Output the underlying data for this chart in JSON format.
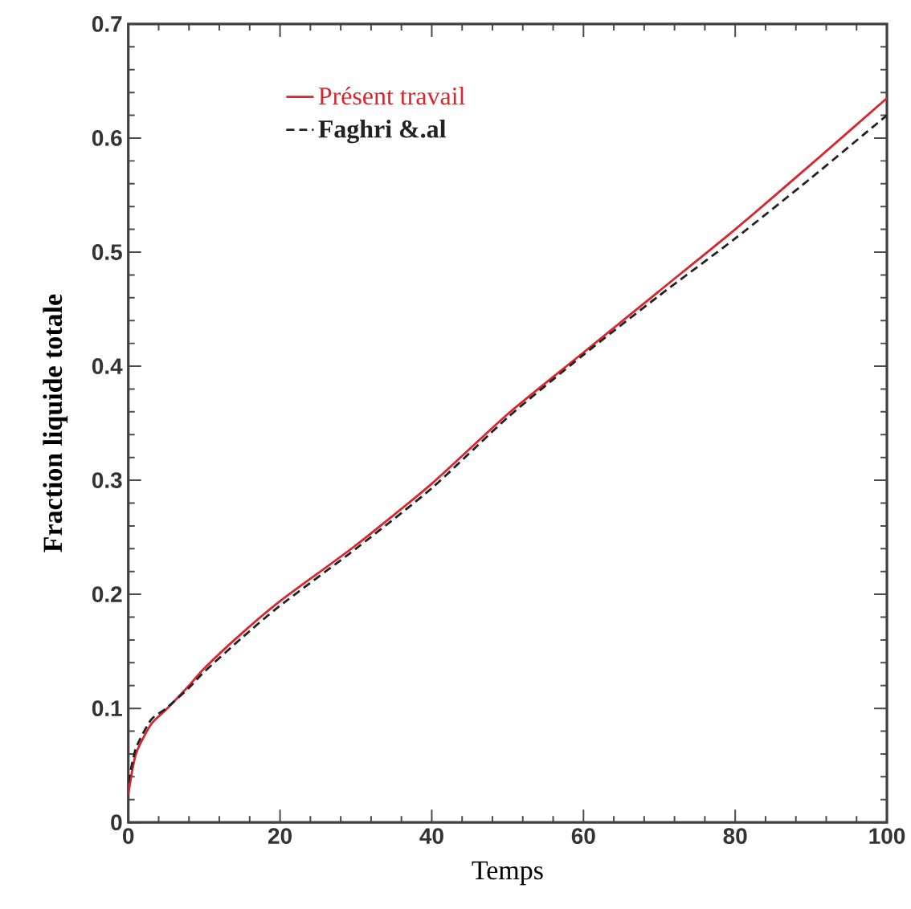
{
  "chart_data": {
    "type": "line",
    "xlabel": "Temps",
    "ylabel": "Fraction liquide totale",
    "xlim": [
      0,
      100
    ],
    "ylim": [
      0,
      0.7
    ],
    "xticks": [
      0,
      20,
      40,
      60,
      80,
      100
    ],
    "yticks": [
      0,
      0.1,
      0.2,
      0.3,
      0.4,
      0.5,
      0.6,
      0.7
    ],
    "legend": "top left",
    "grid": false,
    "series": [
      {
        "name": "Présent  travail",
        "color": "#d9262e",
        "line_style": "solid",
        "x": [
          0,
          1,
          3,
          5,
          8,
          10,
          15,
          20,
          30,
          40,
          50,
          60,
          70,
          80,
          90,
          100
        ],
        "values": [
          0.025,
          0.06,
          0.086,
          0.099,
          0.12,
          0.135,
          0.166,
          0.194,
          0.243,
          0.297,
          0.358,
          0.412,
          0.466,
          0.52,
          0.577,
          0.635
        ]
      },
      {
        "name": "Faghri &.al",
        "color": "#222222",
        "line_style": "dashed",
        "x": [
          0,
          1,
          3,
          5,
          8,
          10,
          15,
          20,
          30,
          40,
          50,
          60,
          70,
          80,
          90,
          100
        ],
        "values": [
          0.035,
          0.065,
          0.09,
          0.1,
          0.118,
          0.132,
          0.162,
          0.19,
          0.24,
          0.293,
          0.355,
          0.41,
          0.462,
          0.512,
          0.565,
          0.62
        ]
      }
    ]
  }
}
